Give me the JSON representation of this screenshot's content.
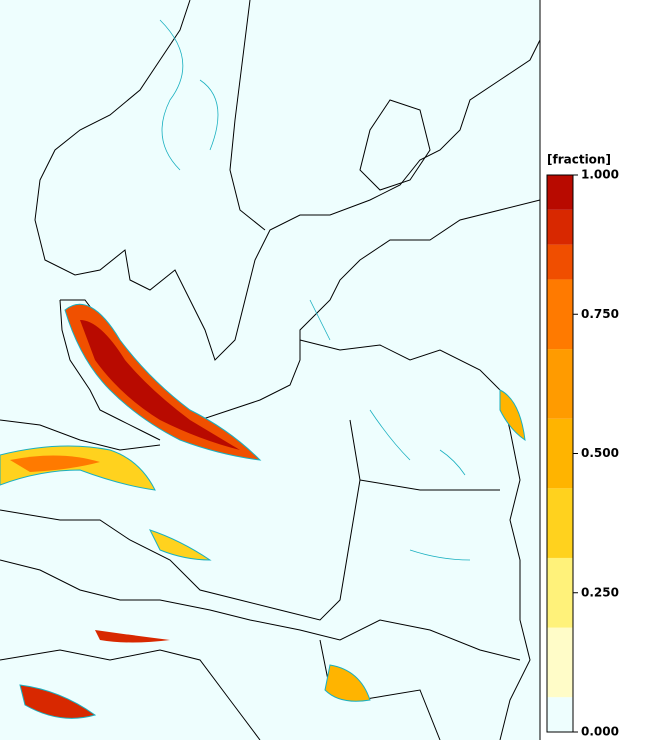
{
  "colorbar": {
    "label": "[fraction]",
    "levels": [
      0,
      0.0625,
      0.1875,
      0.3125,
      0.4375,
      0.5625,
      0.6875,
      0.8125,
      0.875,
      0.9375,
      1.0
    ],
    "colors": [
      "#eefefe",
      "#fffcc8",
      "#fff27a",
      "#ffd21e",
      "#ffb400",
      "#ff9b00",
      "#ff7a00",
      "#f04e00",
      "#d82800",
      "#b80a00"
    ],
    "ticks": [
      {
        "value": 1.0,
        "label": "1.000"
      },
      {
        "value": 0.75,
        "label": "0.750"
      },
      {
        "value": 0.5,
        "label": "0.500"
      },
      {
        "value": 0.25,
        "label": "0.250"
      },
      {
        "value": 0.0,
        "label": "0.000"
      }
    ]
  }
}
